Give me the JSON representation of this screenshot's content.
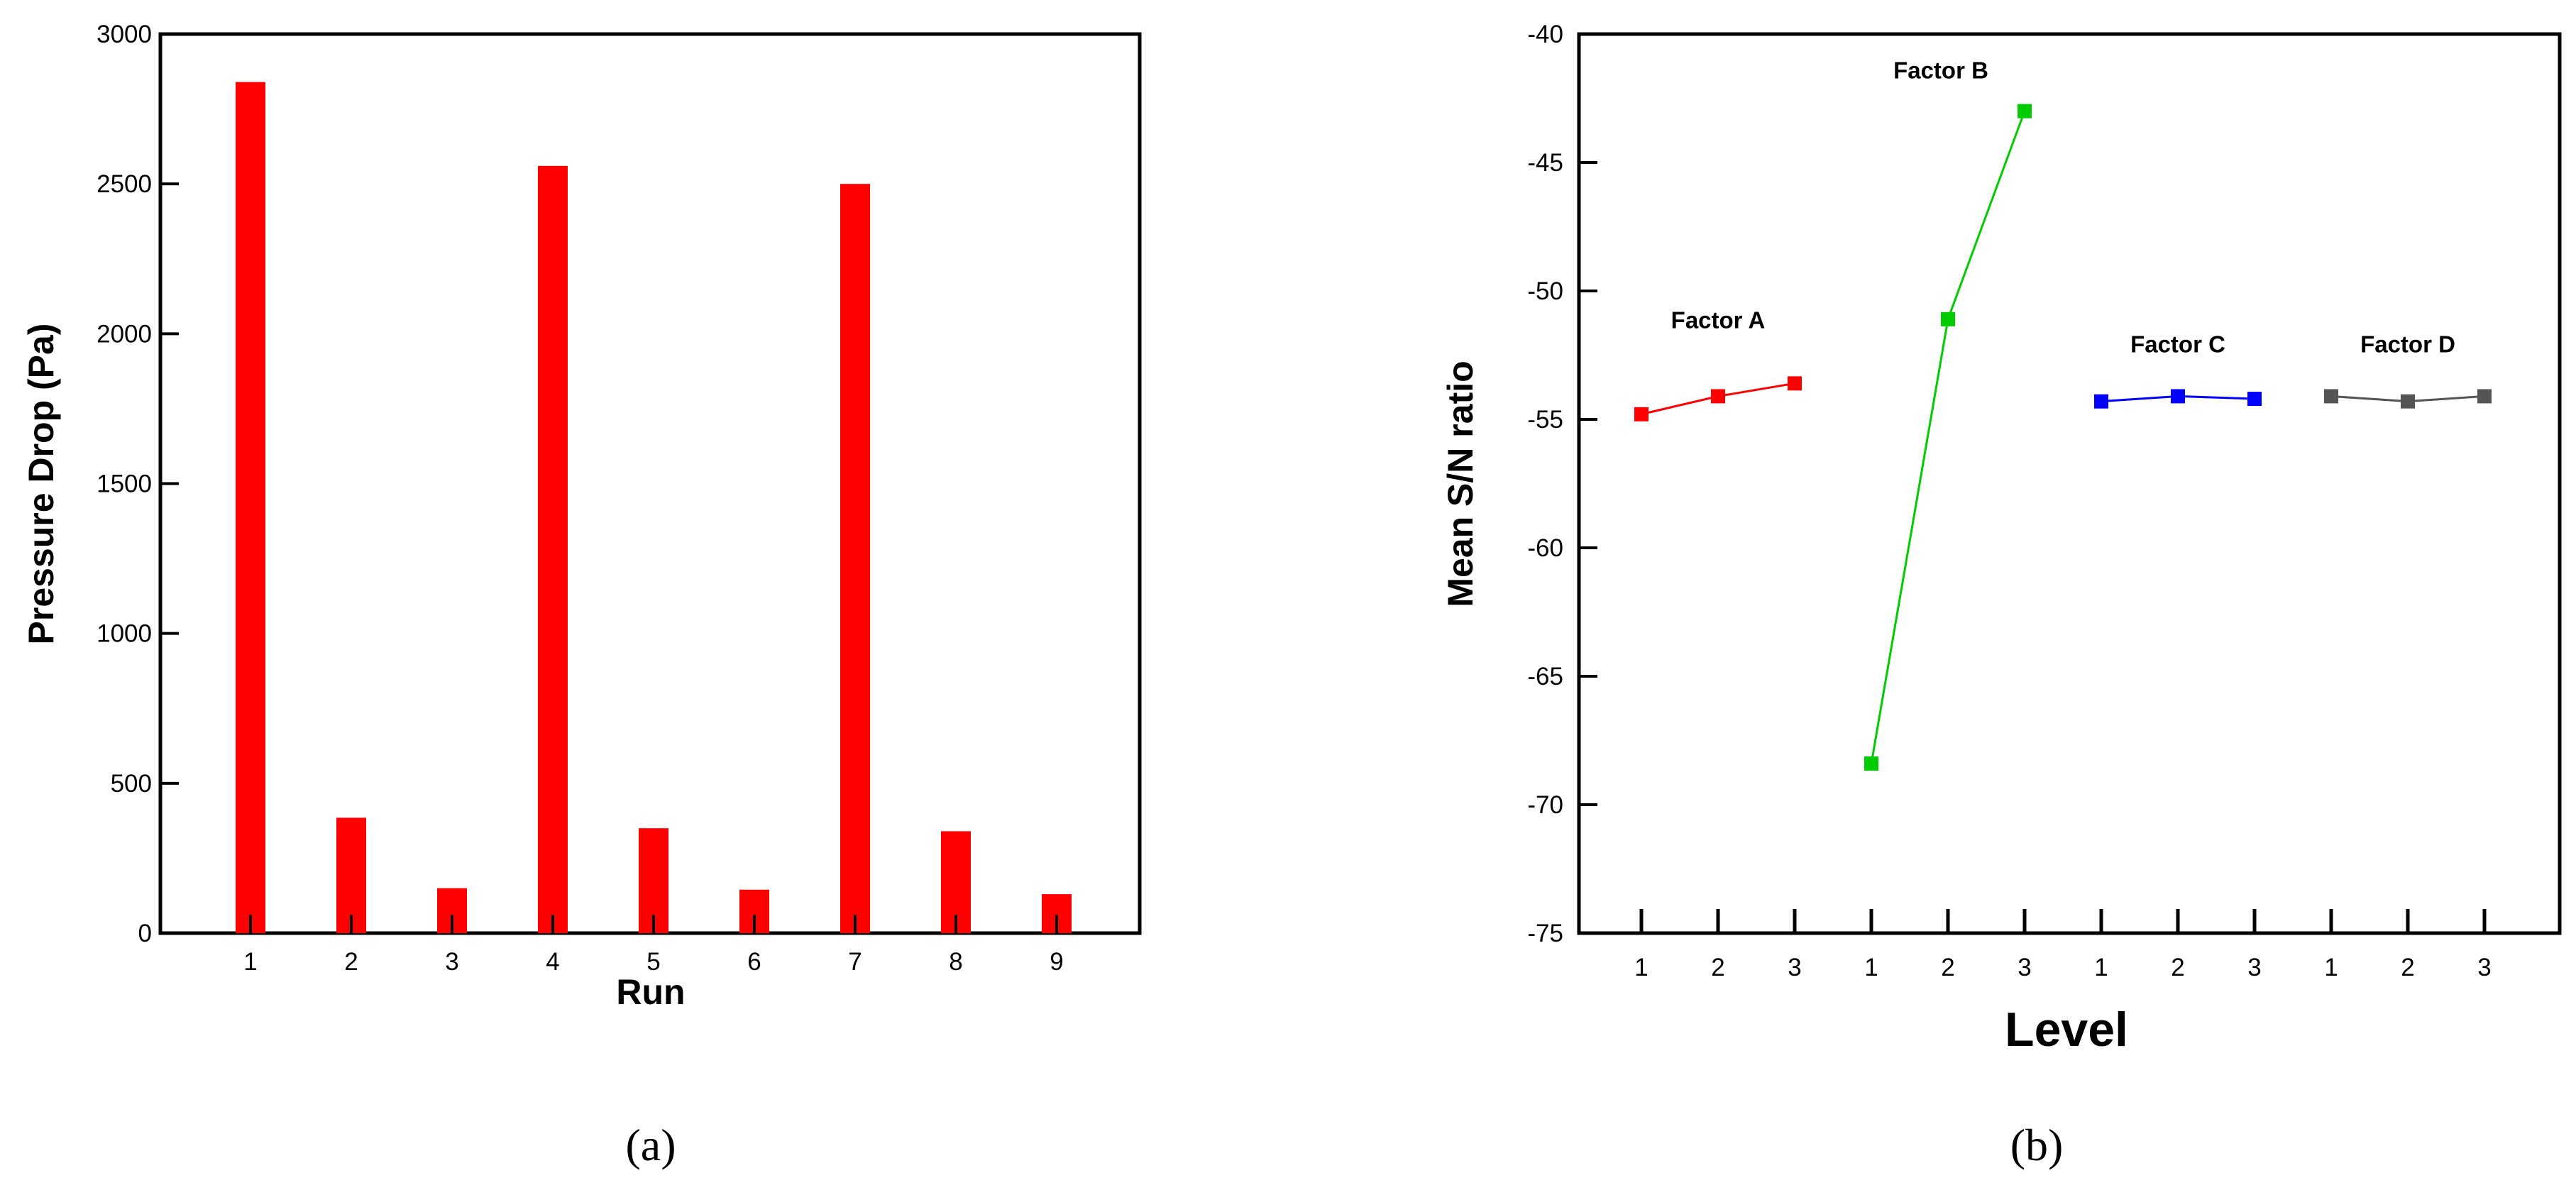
{
  "chart_data": [
    {
      "type": "bar",
      "panel_label": "(a)",
      "xlabel": "Run",
      "ylabel": "Pressure Drop (Pa)",
      "categories": [
        "1",
        "2",
        "3",
        "4",
        "5",
        "6",
        "7",
        "8",
        "9"
      ],
      "values": [
        2840,
        385,
        150,
        2560,
        350,
        145,
        2500,
        340,
        130
      ],
      "ylim": [
        0,
        3000
      ],
      "yticks": [
        "0",
        "500",
        "1000",
        "1500",
        "2000",
        "2500",
        "3000"
      ],
      "bar_color": "#ff0000",
      "grid": false
    },
    {
      "type": "line",
      "panel_label": "(b)",
      "xlabel": "Level",
      "ylabel": "Mean S/N ratio",
      "ylim": [
        -75,
        -40
      ],
      "yticks": [
        "-40",
        "-45",
        "-50",
        "-55",
        "-60",
        "-65",
        "-70",
        "-75"
      ],
      "xticks": [
        "1",
        "2",
        "3",
        "1",
        "2",
        "3",
        "1",
        "2",
        "3",
        "1",
        "2",
        "3"
      ],
      "grid": false,
      "series": [
        {
          "name": "Factor A",
          "levels": [
            "1",
            "2",
            "3"
          ],
          "values": [
            -54.8,
            -54.1,
            -53.6
          ],
          "color": "#ff0000"
        },
        {
          "name": "Factor B",
          "levels": [
            "1",
            "2",
            "3"
          ],
          "values": [
            -68.4,
            -51.1,
            -43.0
          ],
          "color": "#00cc00"
        },
        {
          "name": "Factor C",
          "levels": [
            "1",
            "2",
            "3"
          ],
          "values": [
            -54.3,
            -54.1,
            -54.2
          ],
          "color": "#0000ff"
        },
        {
          "name": "Factor D",
          "levels": [
            "1",
            "2",
            "3"
          ],
          "values": [
            -54.1,
            -54.3,
            -54.1
          ],
          "color": "#555555"
        }
      ]
    }
  ]
}
